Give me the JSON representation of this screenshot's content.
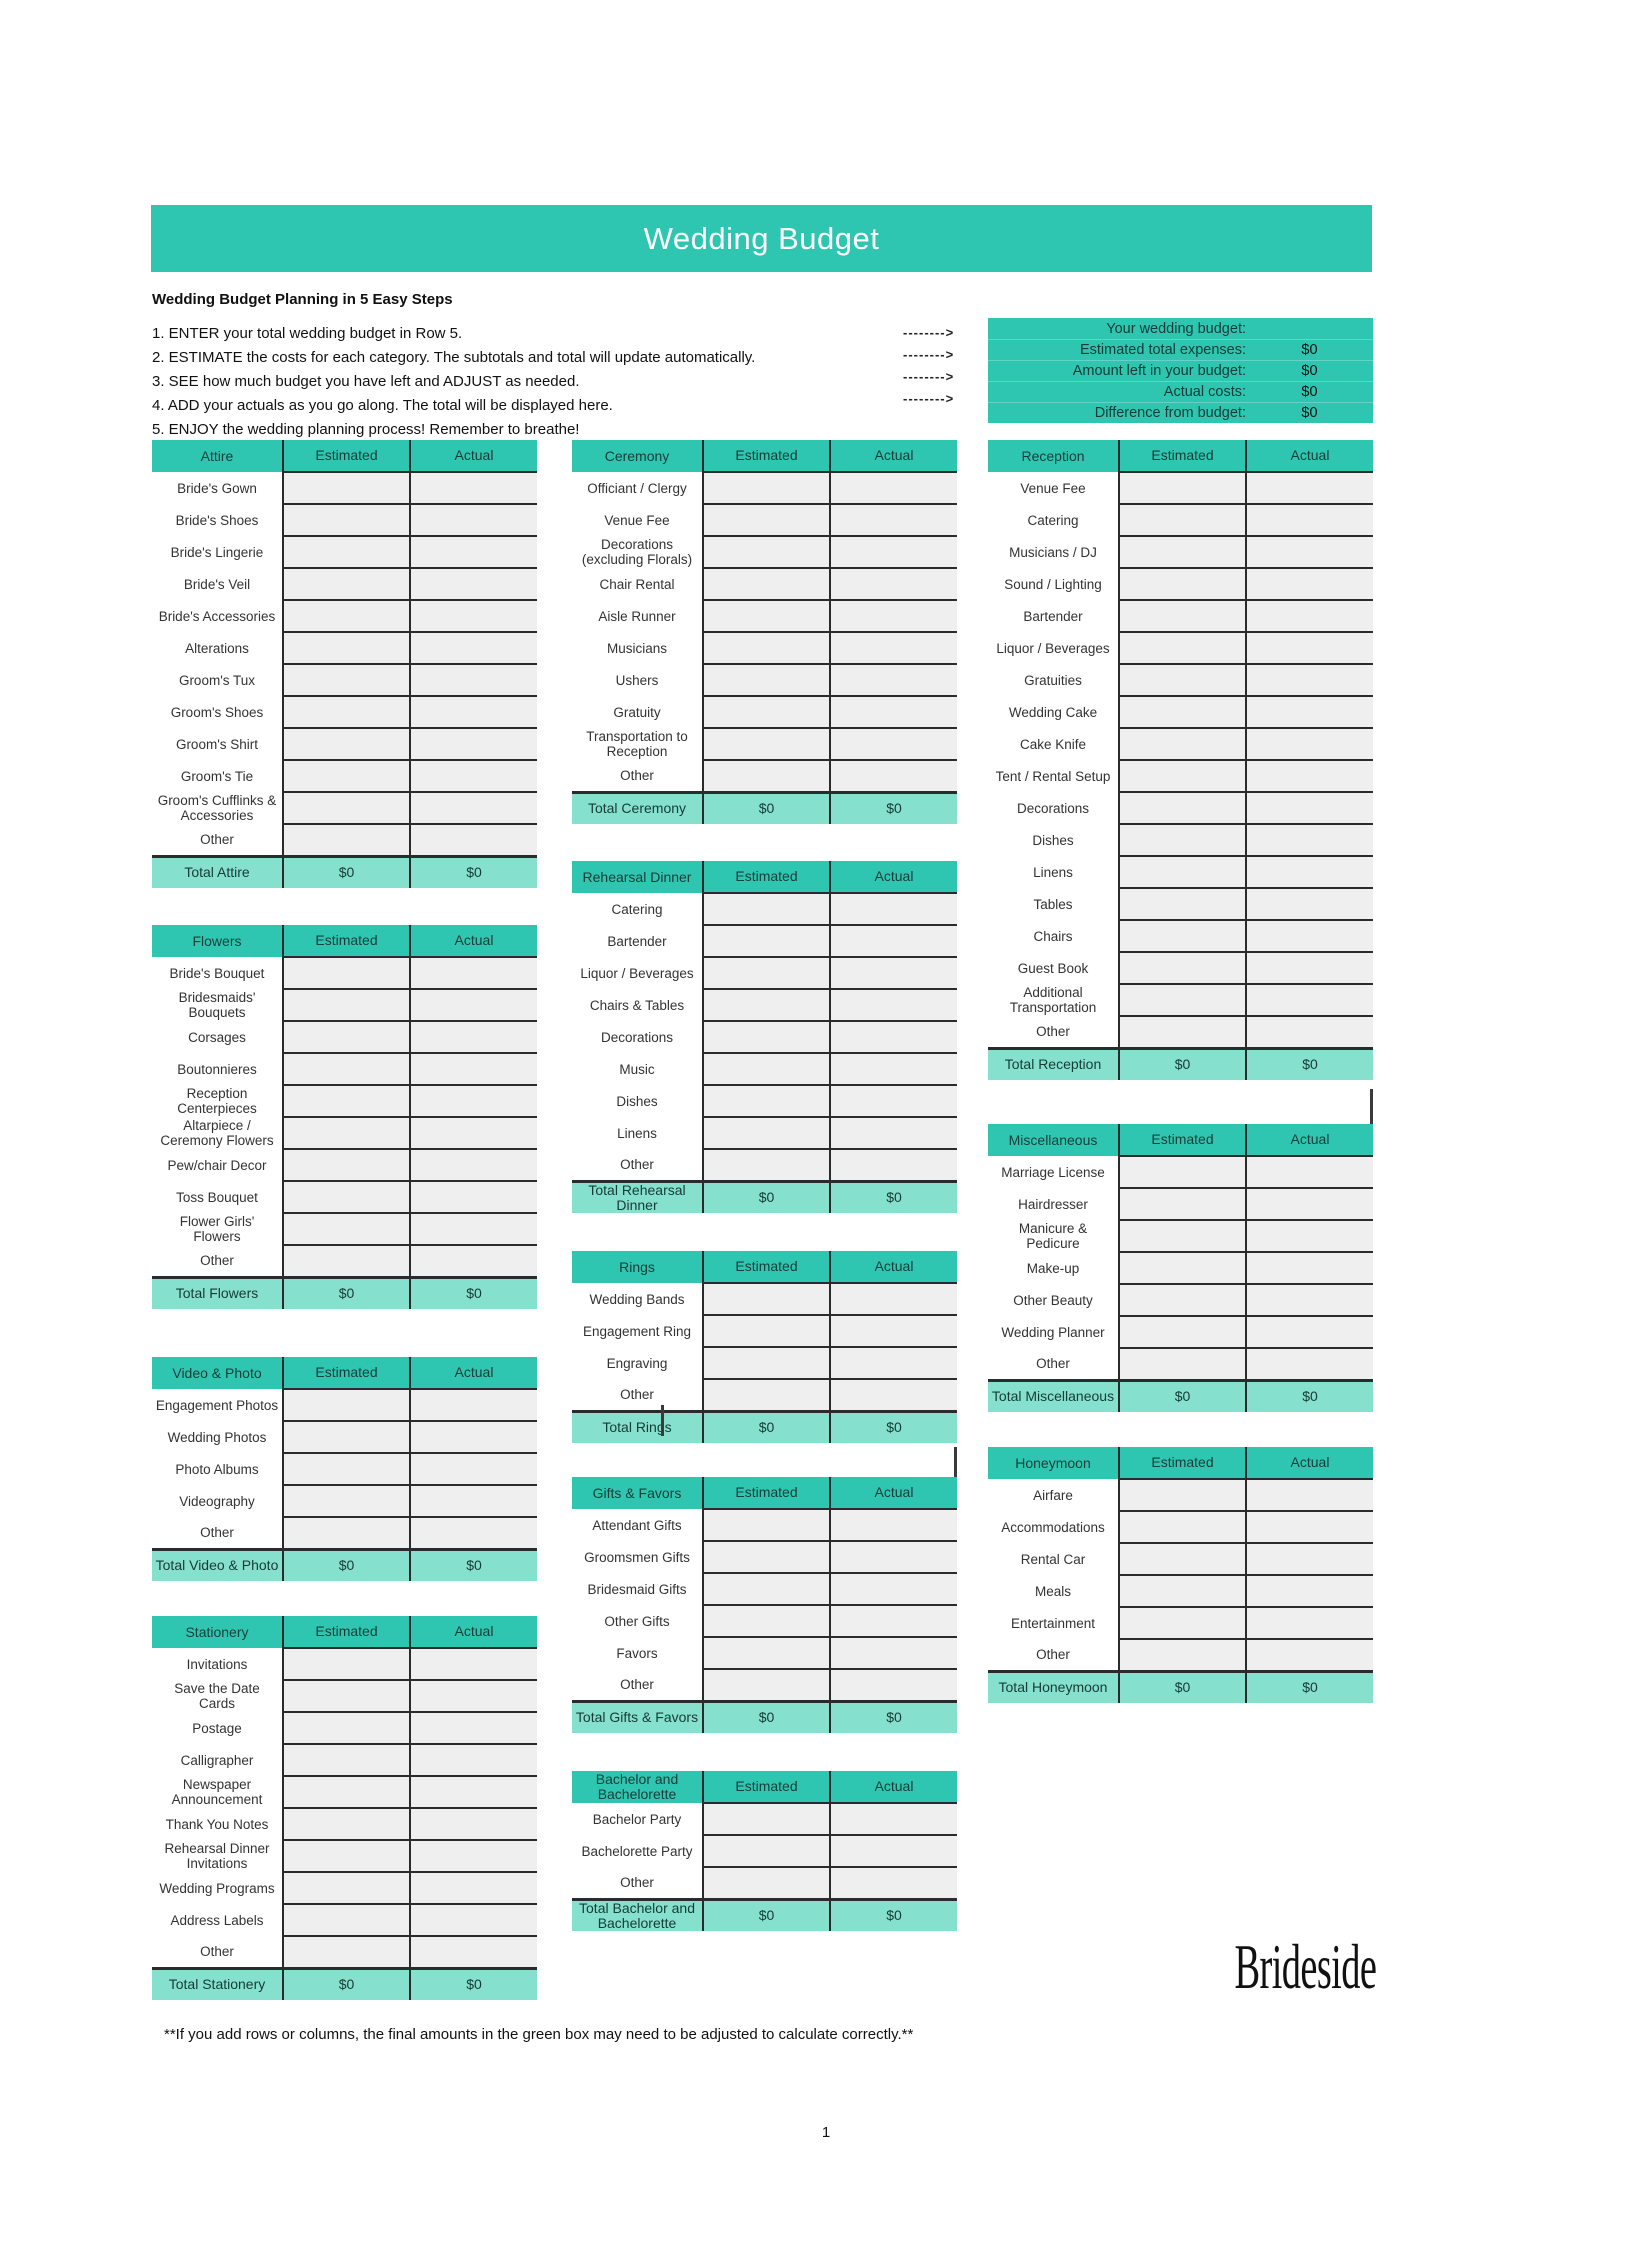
{
  "page": {
    "title": "Wedding Budget",
    "steps_heading": "Wedding Budget Planning in 5 Easy Steps",
    "steps": [
      "1. ENTER your total wedding budget in Row 5.",
      "2. ESTIMATE the costs for each category. The subtotals and total will update automatically.",
      "3. SEE how much budget you have left and ADJUST as needed.",
      "4. ADD your actuals as you go along. The total will be displayed here.",
      "5. ENJOY the wedding planning process! Remember to breathe!"
    ],
    "arrows": [
      "-------->",
      "-------->",
      "-------->",
      "-------->"
    ],
    "footnote": "**If you add rows or columns, the final amounts in the green box may need to be adjusted to calculate correctly.**",
    "brand": "Brideside",
    "page_number": "1"
  },
  "summary": {
    "rows": [
      {
        "label": "Your wedding budget:",
        "value": ""
      },
      {
        "label": "Estimated total expenses:",
        "value": "$0"
      },
      {
        "label": "Amount left in your budget:",
        "value": "$0"
      },
      {
        "label": "Actual costs:",
        "value": "$0"
      },
      {
        "label": "Difference from budget:",
        "value": "$0"
      }
    ]
  },
  "table_headers": {
    "estimated": "Estimated",
    "actual": "Actual"
  },
  "cell_value": "",
  "columns": [
    {
      "tables": [
        {
          "name": "Attire",
          "rows": [
            "Bride's Gown",
            "Bride's Shoes",
            "Bride's Lingerie",
            "Bride's Veil",
            "Bride's Accessories",
            "Alterations",
            "Groom's Tux",
            "Groom's Shoes",
            "Groom's Shirt",
            "Groom's Tie",
            "Groom's Cufflinks & Accessories",
            "Other"
          ],
          "total": {
            "label": "Total Attire",
            "estimated": "$0",
            "actual": "$0"
          }
        },
        {
          "name": "Flowers",
          "rows": [
            "Bride's Bouquet",
            "Bridesmaids' Bouquets",
            "Corsages",
            "Boutonnieres",
            "Reception Centerpieces",
            "Altarpiece / Ceremony Flowers",
            "Pew/chair Decor",
            "Toss Bouquet",
            "Flower Girls' Flowers",
            "Other"
          ],
          "total": {
            "label": "Total Flowers",
            "estimated": "$0",
            "actual": "$0"
          }
        },
        {
          "name": "Video & Photo",
          "rows": [
            "Engagement Photos",
            "Wedding Photos",
            "Photo Albums",
            "Videography",
            "Other"
          ],
          "total": {
            "label": "Total Video & Photo",
            "estimated": "$0",
            "actual": "$0"
          }
        },
        {
          "name": "Stationery",
          "rows": [
            "Invitations",
            "Save the Date Cards",
            "Postage",
            "Calligrapher",
            "Newspaper Announcement",
            "Thank You Notes",
            "Rehearsal Dinner Invitations",
            "Wedding Programs",
            "Address Labels",
            "Other"
          ],
          "total": {
            "label": "Total Stationery",
            "estimated": "$0",
            "actual": "$0"
          }
        }
      ]
    },
    {
      "tables": [
        {
          "name": "Ceremony",
          "rows": [
            "Officiant / Clergy",
            "Venue Fee",
            "Decorations (excluding Florals)",
            "Chair Rental",
            "Aisle Runner",
            "Musicians",
            "Ushers",
            "Gratuity",
            "Transportation to Reception",
            "Other"
          ],
          "total": {
            "label": "Total Ceremony",
            "estimated": "$0",
            "actual": "$0"
          }
        },
        {
          "name": "Rehearsal Dinner",
          "rows": [
            "Catering",
            "Bartender",
            "Liquor / Beverages",
            "Chairs & Tables",
            "Decorations",
            "Music",
            "Dishes",
            "Linens",
            "Other"
          ],
          "total": {
            "label": "Total Rehearsal Dinner",
            "estimated": "$0",
            "actual": "$0"
          }
        },
        {
          "name": "Rings",
          "rows": [
            "Wedding Bands",
            "Engagement Ring",
            "Engraving",
            "Other"
          ],
          "total": {
            "label": "Total Rings",
            "estimated": "$0",
            "actual": "$0"
          }
        },
        {
          "name": "Gifts & Favors",
          "rows": [
            "Attendant Gifts",
            "Groomsmen Gifts",
            "Bridesmaid Gifts",
            "Other Gifts",
            "Favors",
            "Other"
          ],
          "total": {
            "label": "Total Gifts & Favors",
            "estimated": "$0",
            "actual": "$0"
          }
        },
        {
          "name": "Bachelor and Bachelorette",
          "rows": [
            "Bachelor Party",
            "Bachelorette Party",
            "Other"
          ],
          "total": {
            "label": "Total Bachelor and Bachelorette",
            "estimated": "$0",
            "actual": "$0"
          }
        }
      ]
    },
    {
      "tables": [
        {
          "name": "Reception",
          "rows": [
            "Venue Fee",
            "Catering",
            "Musicians / DJ",
            "Sound / Lighting",
            "Bartender",
            "Liquor / Beverages",
            "Gratuities",
            "Wedding Cake",
            "Cake Knife",
            "Tent / Rental Setup",
            "Decorations",
            "Dishes",
            "Linens",
            "Tables",
            "Chairs",
            "Guest Book",
            "Additional Transportation",
            "Other"
          ],
          "total": {
            "label": "Total Reception",
            "estimated": "$0",
            "actual": "$0"
          }
        },
        {
          "name": "Miscellaneous",
          "rows": [
            "Marriage License",
            "Hairdresser",
            "Manicure & Pedicure",
            "Make-up",
            "Other Beauty",
            "Wedding Planner",
            "Other"
          ],
          "total": {
            "label": "Total Miscellaneous",
            "estimated": "$0",
            "actual": "$0"
          }
        },
        {
          "name": "Honeymoon",
          "rows": [
            "Airfare",
            "Accommodations",
            "Rental Car",
            "Meals",
            "Entertainment",
            "Other"
          ],
          "total": {
            "label": "Total Honeymoon",
            "estimated": "$0",
            "actual": "$0"
          }
        }
      ]
    }
  ],
  "colors": {
    "teal": "#2FC6B1",
    "mint": "#85E0CE",
    "cell_fill": "#EFEFEF",
    "border": "#2B2B2B"
  }
}
